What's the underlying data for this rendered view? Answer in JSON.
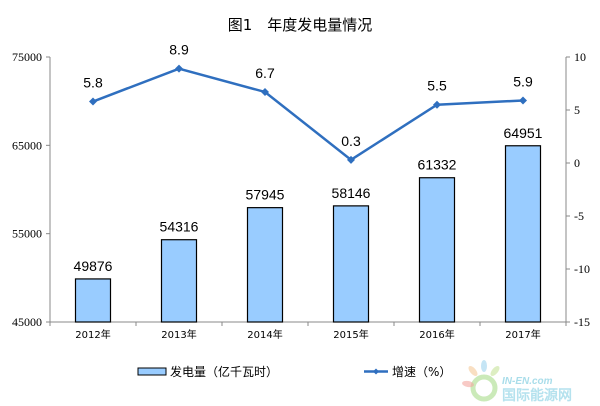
{
  "chart_data": {
    "type": "bar+line",
    "title": "图1　年度发电量情况",
    "categories": [
      "2012年",
      "2013年",
      "2014年",
      "2015年",
      "2016年",
      "2017年"
    ],
    "series": [
      {
        "name": "发电量（亿千瓦时）",
        "type": "bar",
        "axis": "left",
        "values": [
          49876,
          54316,
          57945,
          58146,
          61332,
          64951
        ]
      },
      {
        "name": "增速（%）",
        "type": "line",
        "axis": "right",
        "values": [
          5.8,
          8.9,
          6.7,
          0.3,
          5.5,
          5.9
        ]
      }
    ],
    "y_left": {
      "range": [
        45000,
        75000
      ],
      "ticks": [
        45000,
        55000,
        65000,
        75000
      ]
    },
    "y_right": {
      "range": [
        -15,
        10
      ],
      "ticks": [
        -15,
        -10,
        -5,
        0,
        5,
        10
      ]
    },
    "grid": false,
    "legend_position": "bottom",
    "colors": {
      "bar_fill": "#99CCFF",
      "bar_stroke": "#000000",
      "line": "#2F6FBF"
    }
  },
  "watermark": {
    "text_top": "IN-EN.com",
    "text_bottom": "国际能源网"
  }
}
